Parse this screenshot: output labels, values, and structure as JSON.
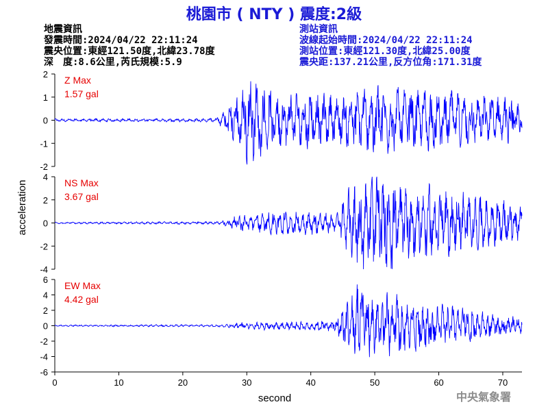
{
  "title": "桃園市 ( NTY ) 震度:2級",
  "quake_info": {
    "heading": "地震資訊",
    "time": "發震時間:2024/04/22 22:11:24",
    "location": "震央位置:東經121.50度,北緯23.78度",
    "depth": "深　度:8.6公里,芮氏規模:5.9"
  },
  "station_info": {
    "heading": "測站資訊",
    "wave_start": "波線起始時間:2024/04/22 22:11:24",
    "location": "測站位置:東經121.30度,北緯25.00度",
    "distance": "震央距:137.21公里,反方位角:171.31度"
  },
  "credit": "中央氣象署",
  "colors": {
    "title": "#1a1ad6",
    "trace": "#0000ff",
    "max_label": "#e60000",
    "station_text": "#1a1ad6"
  },
  "chart_data": {
    "type": "line",
    "xlabel": "second",
    "ylabel": "acceleration",
    "xlim": [
      0,
      73
    ],
    "xticks": [
      0,
      10,
      20,
      30,
      40,
      50,
      60,
      70
    ],
    "panels": [
      {
        "name": "Z Max",
        "max_value": "1.57 gal",
        "ylim": [
          -2,
          2
        ],
        "yticks": [
          -2,
          -1,
          0,
          1,
          2
        ],
        "envelope": [
          [
            0,
            0.05
          ],
          [
            25,
            0.06
          ],
          [
            26,
            0.25
          ],
          [
            28,
            0.8
          ],
          [
            30,
            1.5
          ],
          [
            32,
            1.2
          ],
          [
            35,
            1.0
          ],
          [
            40,
            1.0
          ],
          [
            45,
            0.9
          ],
          [
            50,
            1.2
          ],
          [
            55,
            1.1
          ],
          [
            60,
            1.0
          ],
          [
            65,
            0.9
          ],
          [
            70,
            0.9
          ],
          [
            73,
            0.7
          ]
        ]
      },
      {
        "name": "NS Max",
        "max_value": "3.67 gal",
        "ylim": [
          -4,
          4
        ],
        "yticks": [
          -4,
          -2,
          0,
          2,
          4
        ],
        "envelope": [
          [
            0,
            0.06
          ],
          [
            26,
            0.1
          ],
          [
            28,
            0.5
          ],
          [
            34,
            0.8
          ],
          [
            40,
            0.8
          ],
          [
            44,
            0.6
          ],
          [
            45,
            1.5
          ],
          [
            47,
            3.0
          ],
          [
            51,
            3.5
          ],
          [
            55,
            2.8
          ],
          [
            60,
            2.5
          ],
          [
            65,
            2.0
          ],
          [
            70,
            1.5
          ],
          [
            73,
            1.2
          ]
        ]
      },
      {
        "name": "EW Max",
        "max_value": "4.42 gal",
        "ylim": [
          -6,
          6
        ],
        "yticks": [
          -6,
          -4,
          -2,
          0,
          2,
          4,
          6
        ],
        "envelope": [
          [
            0,
            0.08
          ],
          [
            26,
            0.12
          ],
          [
            30,
            0.4
          ],
          [
            40,
            0.5
          ],
          [
            44,
            0.8
          ],
          [
            45,
            2.0
          ],
          [
            47,
            4.2
          ],
          [
            50,
            3.5
          ],
          [
            54,
            3.0
          ],
          [
            58,
            2.5
          ],
          [
            62,
            2.0
          ],
          [
            66,
            1.5
          ],
          [
            70,
            1.0
          ],
          [
            73,
            0.8
          ]
        ]
      }
    ]
  }
}
